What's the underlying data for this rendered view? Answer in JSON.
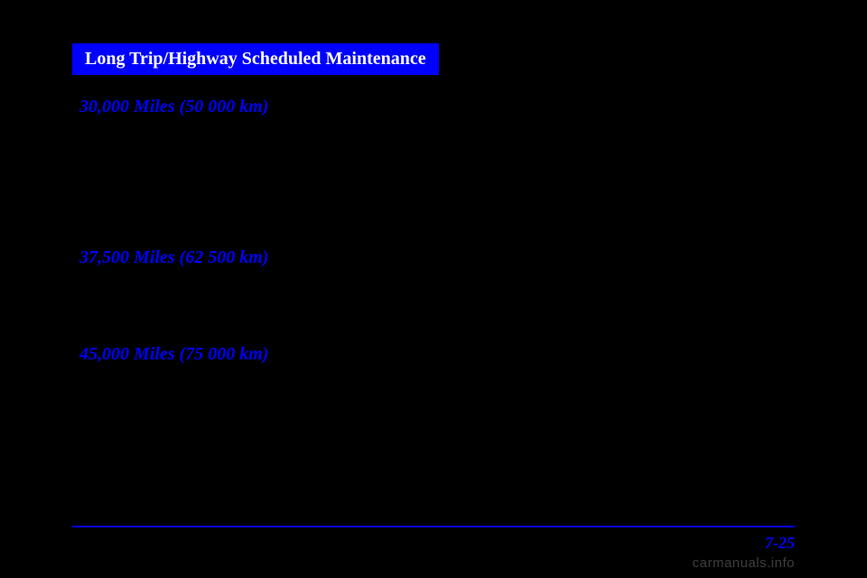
{
  "banner": "Long Trip/Highway Scheduled Maintenance",
  "sections": [
    {
      "heading": "30,000 Miles (50 000 km)"
    },
    {
      "heading": "37,500 Miles (62 500 km)"
    },
    {
      "heading": "45,000 Miles (75 000 km)"
    }
  ],
  "pageNumber": "7-25",
  "watermark": "carmanuals.info",
  "colors": {
    "background": "#000000",
    "accent": "#0000ff",
    "bannerText": "#ffffff",
    "watermark": "#888888"
  },
  "typography": {
    "bannerSize": 20,
    "headingSize": 20,
    "pageNumSize": 18,
    "watermarkSize": 15
  }
}
